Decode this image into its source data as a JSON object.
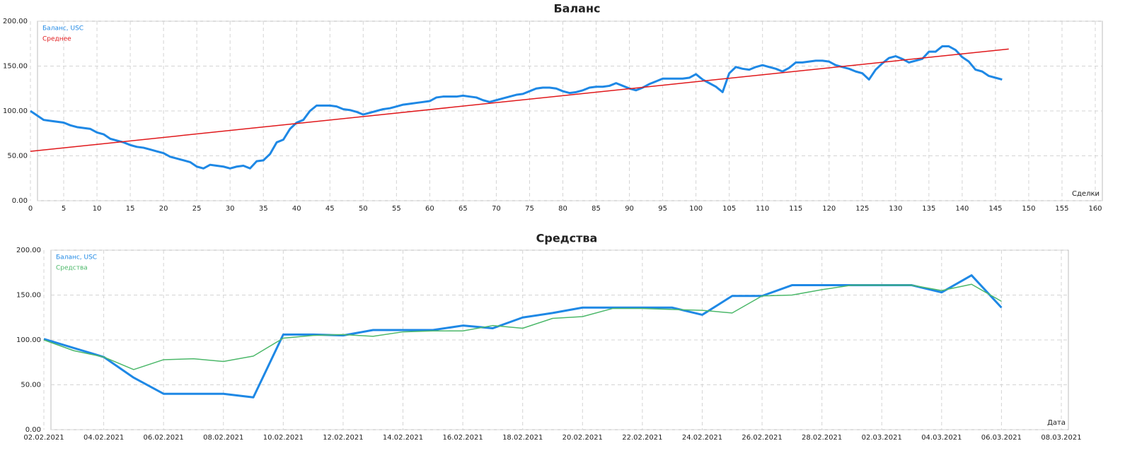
{
  "chart_data": [
    {
      "type": "line",
      "title": "Баланс",
      "x_label": "Сделки",
      "grid": true,
      "legend": "top-left",
      "x_kind": "number",
      "xlim": [
        0,
        160
      ],
      "xticks": [
        0,
        5,
        10,
        15,
        20,
        25,
        30,
        35,
        40,
        45,
        50,
        55,
        60,
        65,
        70,
        75,
        80,
        85,
        90,
        95,
        100,
        105,
        110,
        115,
        120,
        125,
        130,
        135,
        140,
        145,
        150,
        155,
        160
      ],
      "ylim": [
        0,
        200
      ],
      "yticks": [
        {
          "value": 0,
          "label": "0.00"
        },
        {
          "value": 50,
          "label": "50.00"
        },
        {
          "value": 100,
          "label": "100.00"
        },
        {
          "value": 150,
          "label": "150.00"
        },
        {
          "value": 200,
          "label": "200.00"
        }
      ],
      "series": [
        {
          "name": "Баланс, USC",
          "color": "#1e88e5",
          "width": 3,
          "x": [
            0,
            1,
            2,
            3,
            4,
            5,
            6,
            7,
            8,
            9,
            10,
            11,
            12,
            13,
            14,
            15,
            16,
            17,
            18,
            19,
            20,
            21,
            22,
            23,
            24,
            25,
            26,
            27,
            28,
            29,
            30,
            31,
            32,
            33,
            34,
            35,
            36,
            37,
            38,
            39,
            40,
            41,
            42,
            43,
            44,
            45,
            46,
            47,
            48,
            49,
            50,
            51,
            52,
            53,
            54,
            55,
            56,
            57,
            58,
            59,
            60,
            61,
            62,
            63,
            64,
            65,
            66,
            67,
            68,
            69,
            70,
            71,
            72,
            73,
            74,
            75,
            76,
            77,
            78,
            79,
            80,
            81,
            82,
            83,
            84,
            85,
            86,
            87,
            88,
            89,
            90,
            91,
            92,
            93,
            94,
            95,
            96,
            97,
            98,
            99,
            100,
            101,
            102,
            103,
            104,
            105,
            106,
            107,
            108,
            109,
            110,
            111,
            112,
            113,
            114,
            115,
            116,
            117,
            118,
            119,
            120,
            121,
            122,
            123,
            124,
            125,
            126,
            127,
            128,
            129,
            130,
            131,
            132,
            133,
            134,
            135,
            136,
            137,
            138,
            139,
            140,
            141,
            142,
            143,
            144,
            145,
            146
          ],
          "values": [
            100,
            95,
            90,
            89,
            88,
            87,
            84,
            82,
            81,
            80,
            76,
            74,
            69,
            67,
            65,
            62,
            60,
            59,
            57,
            55,
            53,
            49,
            47,
            45,
            43,
            38,
            36,
            40,
            39,
            38,
            36,
            38,
            39,
            36,
            44,
            45,
            52,
            65,
            68,
            80,
            87,
            90,
            100,
            106,
            106,
            106,
            105,
            102,
            101,
            99,
            96,
            98,
            100,
            102,
            103,
            105,
            107,
            108,
            109,
            110,
            111,
            115,
            116,
            116,
            116,
            117,
            116,
            115,
            112,
            110,
            112,
            114,
            116,
            118,
            119,
            122,
            125,
            126,
            126,
            125,
            122,
            120,
            121,
            123,
            126,
            127,
            127,
            128,
            131,
            128,
            125,
            123,
            126,
            130,
            133,
            136,
            136,
            136,
            136,
            137,
            141,
            135,
            131,
            127,
            121,
            142,
            149,
            147,
            146,
            149,
            151,
            149,
            147,
            144,
            148,
            154,
            154,
            155,
            156,
            156,
            155,
            151,
            149,
            147,
            144,
            142,
            135,
            146,
            153,
            159,
            161,
            158,
            154,
            156,
            158,
            166,
            166,
            172,
            172,
            168,
            160,
            155,
            146,
            144,
            139,
            137,
            135
          ]
        },
        {
          "name": "Среднее",
          "color": "#e0181b",
          "width": 1.5,
          "x": [
            0,
            147
          ],
          "values": [
            55,
            169
          ]
        }
      ]
    },
    {
      "type": "line",
      "title": "Средства",
      "x_label": "Дата",
      "grid": true,
      "legend": "top-left",
      "x_kind": "date",
      "xlim": [
        "02.02.2021",
        "08.03.2021"
      ],
      "xticks": [
        "02.02.2021",
        "04.02.2021",
        "06.02.2021",
        "08.02.2021",
        "10.02.2021",
        "12.02.2021",
        "14.02.2021",
        "16.02.2021",
        "18.02.2021",
        "20.02.2021",
        "22.02.2021",
        "24.02.2021",
        "26.02.2021",
        "28.02.2021",
        "02.03.2021",
        "04.03.2021",
        "06.03.2021",
        "08.03.2021"
      ],
      "ylim": [
        0,
        200
      ],
      "yticks": [
        {
          "value": 0,
          "label": "0.00"
        },
        {
          "value": 50,
          "label": "50.00"
        },
        {
          "value": 100,
          "label": "100.00"
        },
        {
          "value": 150,
          "label": "150.00"
        },
        {
          "value": 200,
          "label": "200.00"
        }
      ],
      "series": [
        {
          "name": "Баланс, USC",
          "color": "#1e88e5",
          "width": 3,
          "x": [
            "02.02.2021",
            "03.02.2021",
            "04.02.2021",
            "05.02.2021",
            "06.02.2021",
            "07.02.2021",
            "08.02.2021",
            "09.02.2021",
            "10.02.2021",
            "11.02.2021",
            "12.02.2021",
            "13.02.2021",
            "14.02.2021",
            "15.02.2021",
            "16.02.2021",
            "17.02.2021",
            "18.02.2021",
            "19.02.2021",
            "20.02.2021",
            "21.02.2021",
            "22.02.2021",
            "23.02.2021",
            "24.02.2021",
            "25.02.2021",
            "26.02.2021",
            "27.02.2021",
            "28.02.2021",
            "01.03.2021",
            "02.03.2021",
            "03.03.2021",
            "04.03.2021",
            "05.03.2021",
            "06.03.2021"
          ],
          "values": [
            101,
            91,
            81,
            58,
            40,
            40,
            40,
            36,
            106,
            106,
            105,
            111,
            111,
            111,
            116,
            113,
            125,
            130,
            136,
            136,
            136,
            136,
            128,
            149,
            149,
            161,
            161,
            161,
            161,
            161,
            153,
            172,
            136
          ]
        },
        {
          "name": "Средства",
          "color": "#4cb86a",
          "width": 1.5,
          "x": [
            "02.02.2021",
            "03.02.2021",
            "04.02.2021",
            "05.02.2021",
            "06.02.2021",
            "07.02.2021",
            "08.02.2021",
            "09.02.2021",
            "10.02.2021",
            "11.02.2021",
            "12.02.2021",
            "13.02.2021",
            "14.02.2021",
            "15.02.2021",
            "16.02.2021",
            "17.02.2021",
            "18.02.2021",
            "19.02.2021",
            "20.02.2021",
            "21.02.2021",
            "22.02.2021",
            "23.02.2021",
            "24.02.2021",
            "25.02.2021",
            "26.02.2021",
            "27.02.2021",
            "28.02.2021",
            "01.03.2021",
            "02.03.2021",
            "03.03.2021",
            "04.03.2021",
            "05.03.2021",
            "06.03.2021"
          ],
          "values": [
            100,
            88,
            81,
            67,
            78,
            79,
            76,
            82,
            102,
            105,
            106,
            104,
            109,
            110,
            110,
            116,
            113,
            124,
            126,
            135,
            135,
            134,
            133,
            130,
            149,
            150,
            156,
            161,
            161,
            161,
            155,
            162,
            143
          ]
        }
      ]
    }
  ]
}
